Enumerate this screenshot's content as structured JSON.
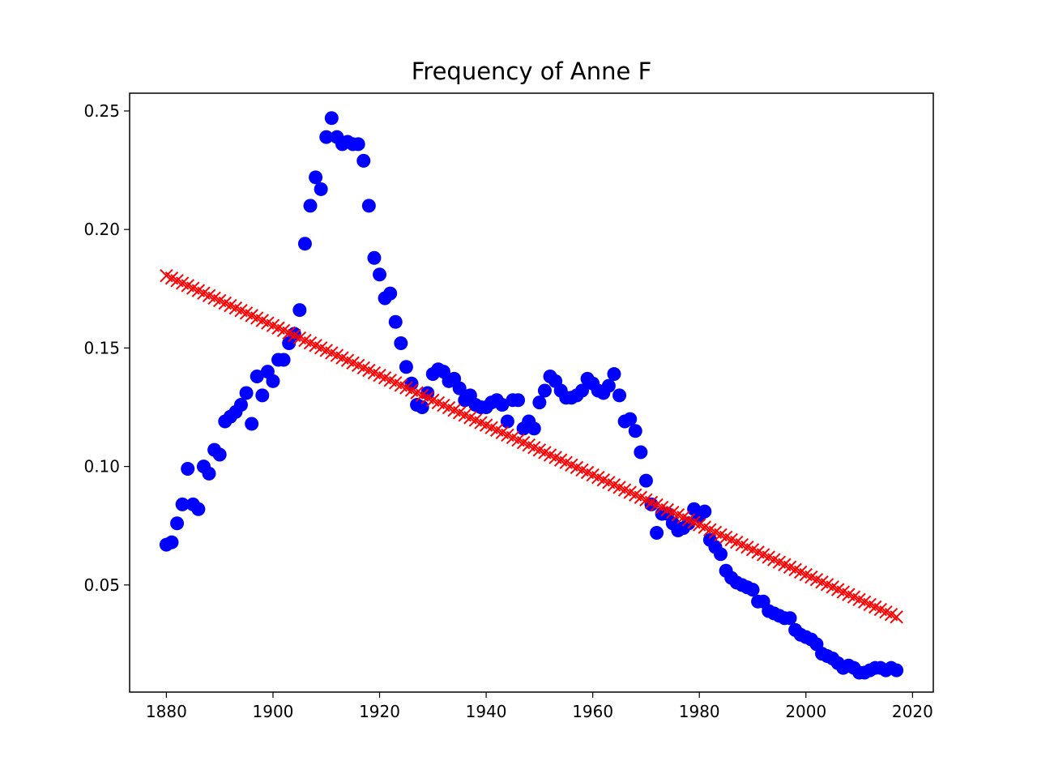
{
  "chart_data": {
    "type": "scatter",
    "title": "Frequency of Anne F",
    "xlabel": "",
    "ylabel": "",
    "xlim": [
      1873.1,
      2023.9
    ],
    "ylim": [
      0.0048,
      0.2575
    ],
    "x_ticks": [
      1880,
      1900,
      1920,
      1940,
      1960,
      1980,
      2000,
      2020
    ],
    "y_ticks": [
      0.05,
      0.1,
      0.15,
      0.2,
      0.25
    ],
    "y_tick_labels": [
      "0.05",
      "0.10",
      "0.15",
      "0.20",
      "0.25"
    ],
    "grid": false,
    "legend": "none",
    "series": [
      {
        "marker": "circle",
        "color": "#0000ff",
        "x": [
          1880,
          1881,
          1882,
          1883,
          1884,
          1885,
          1886,
          1887,
          1888,
          1889,
          1890,
          1891,
          1892,
          1893,
          1894,
          1895,
          1896,
          1897,
          1898,
          1899,
          1900,
          1901,
          1902,
          1903,
          1904,
          1905,
          1906,
          1907,
          1908,
          1909,
          1910,
          1911,
          1912,
          1913,
          1914,
          1915,
          1916,
          1917,
          1918,
          1919,
          1920,
          1921,
          1922,
          1923,
          1924,
          1925,
          1926,
          1927,
          1928,
          1929,
          1930,
          1931,
          1932,
          1933,
          1934,
          1935,
          1936,
          1937,
          1938,
          1939,
          1940,
          1941,
          1942,
          1943,
          1944,
          1945,
          1946,
          1947,
          1948,
          1949,
          1950,
          1951,
          1952,
          1953,
          1954,
          1955,
          1956,
          1957,
          1958,
          1959,
          1960,
          1961,
          1962,
          1963,
          1964,
          1965,
          1966,
          1967,
          1968,
          1969,
          1970,
          1971,
          1972,
          1973,
          1974,
          1975,
          1976,
          1977,
          1978,
          1979,
          1980,
          1981,
          1982,
          1983,
          1984,
          1985,
          1986,
          1987,
          1988,
          1989,
          1990,
          1991,
          1992,
          1993,
          1994,
          1995,
          1996,
          1997,
          1998,
          1999,
          2000,
          2001,
          2002,
          2003,
          2004,
          2005,
          2006,
          2007,
          2008,
          2009,
          2010,
          2011,
          2012,
          2013,
          2014,
          2015,
          2016,
          2017
        ],
        "y": [
          0.067,
          0.068,
          0.076,
          0.084,
          0.099,
          0.084,
          0.082,
          0.1,
          0.097,
          0.107,
          0.105,
          0.119,
          0.121,
          0.123,
          0.126,
          0.131,
          0.118,
          0.138,
          0.13,
          0.14,
          0.136,
          0.145,
          0.145,
          0.152,
          0.156,
          0.166,
          0.194,
          0.21,
          0.222,
          0.217,
          0.239,
          0.247,
          0.239,
          0.236,
          0.237,
          0.236,
          0.236,
          0.229,
          0.21,
          0.188,
          0.181,
          0.171,
          0.173,
          0.161,
          0.152,
          0.142,
          0.135,
          0.126,
          0.125,
          0.131,
          0.139,
          0.141,
          0.14,
          0.136,
          0.137,
          0.133,
          0.128,
          0.13,
          0.126,
          0.125,
          0.125,
          0.127,
          0.128,
          0.126,
          0.119,
          0.128,
          0.128,
          0.116,
          0.119,
          0.116,
          0.127,
          0.132,
          0.138,
          0.136,
          0.132,
          0.129,
          0.129,
          0.13,
          0.132,
          0.137,
          0.135,
          0.132,
          0.131,
          0.134,
          0.139,
          0.13,
          0.119,
          0.12,
          0.115,
          0.106,
          0.094,
          0.084,
          0.072,
          0.08,
          0.08,
          0.076,
          0.073,
          0.074,
          0.076,
          0.082,
          0.079,
          0.081,
          0.069,
          0.066,
          0.063,
          0.056,
          0.053,
          0.051,
          0.05,
          0.049,
          0.048,
          0.043,
          0.043,
          0.039,
          0.038,
          0.037,
          0.036,
          0.036,
          0.031,
          0.029,
          0.028,
          0.027,
          0.025,
          0.021,
          0.02,
          0.019,
          0.017,
          0.015,
          0.016,
          0.015,
          0.013,
          0.013,
          0.014,
          0.015,
          0.015,
          0.014,
          0.015,
          0.014
        ]
      },
      {
        "marker": "x",
        "color": "#ff0000",
        "x_start": 1880,
        "x_end": 2017,
        "y_start": 0.1805,
        "y_end": 0.0365
      }
    ]
  }
}
